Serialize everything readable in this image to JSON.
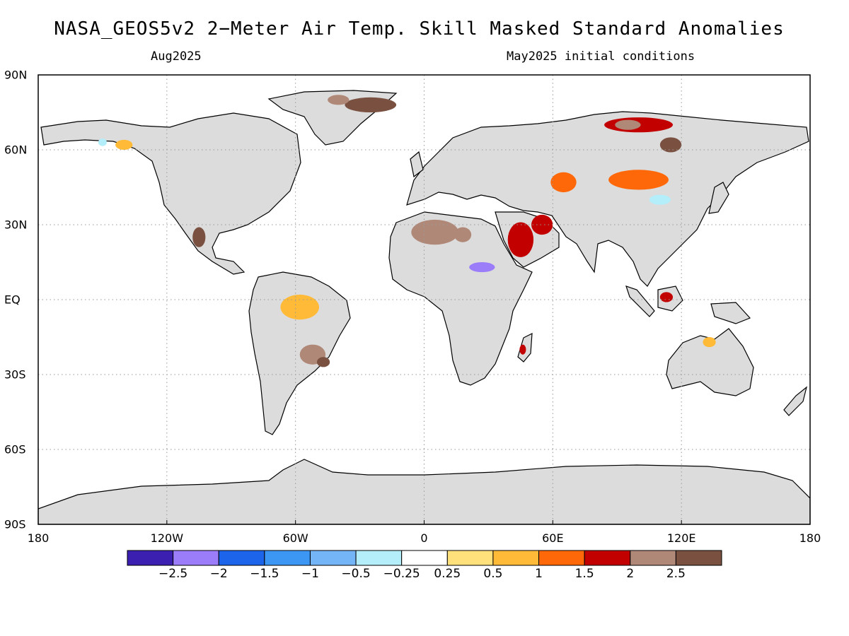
{
  "title": "NASA_GEOS5v2 2−Meter Air Temp. Skill Masked Standard Anomalies",
  "subtitle_left": "Aug2025",
  "subtitle_right": "May2025 initial conditions",
  "map": {
    "land_color": "#dcdcdc",
    "ocean_color": "#ffffff",
    "grid_color": "#999999",
    "lat_labels": [
      {
        "lat": 90,
        "text": "90N"
      },
      {
        "lat": 60,
        "text": "60N"
      },
      {
        "lat": 30,
        "text": "30N"
      },
      {
        "lat": 0,
        "text": "EQ"
      },
      {
        "lat": -30,
        "text": "30S"
      },
      {
        "lat": -60,
        "text": "60S"
      },
      {
        "lat": -90,
        "text": "90S"
      }
    ],
    "lon_labels": [
      {
        "lon": -180,
        "text": "180"
      },
      {
        "lon": -120,
        "text": "120W"
      },
      {
        "lon": -60,
        "text": "60W"
      },
      {
        "lon": 0,
        "text": "0"
      },
      {
        "lon": 60,
        "text": "60E"
      },
      {
        "lon": 120,
        "text": "120E"
      },
      {
        "lon": 180,
        "text": "180"
      }
    ],
    "anomaly_regions": [
      {
        "name": "saharan-warm",
        "lon": 5,
        "lat": 27,
        "rlon": 11,
        "rlat": 5,
        "level": 2
      },
      {
        "name": "saharan-warm-east",
        "lon": 18,
        "lat": 26,
        "rlon": 4,
        "rlat": 3,
        "level": 2
      },
      {
        "name": "arabia-warm",
        "lon": 45,
        "lat": 24,
        "rlon": 6,
        "rlat": 7,
        "level": 1.5
      },
      {
        "name": "iran-warm",
        "lon": 55,
        "lat": 30,
        "rlon": 5,
        "rlat": 4,
        "level": 1.5
      },
      {
        "name": "siberia-north-warm",
        "lon": 100,
        "lat": 70,
        "rlon": 16,
        "rlat": 3,
        "level": 1.5
      },
      {
        "name": "siberia-north-hot",
        "lon": 95,
        "lat": 70,
        "rlon": 6,
        "rlat": 2,
        "level": 2
      },
      {
        "name": "siberia-brown",
        "lon": 115,
        "lat": 62,
        "rlon": 5,
        "rlat": 3,
        "level": 2.5
      },
      {
        "name": "greenland-brown",
        "lon": -25,
        "lat": 78,
        "rlon": 12,
        "rlat": 3,
        "level": 2.5
      },
      {
        "name": "greenland-red",
        "lon": -40,
        "lat": 80,
        "rlon": 5,
        "rlat": 2,
        "level": 2
      },
      {
        "name": "mongolia-warm",
        "lon": 100,
        "lat": 48,
        "rlon": 14,
        "rlat": 4,
        "level": 1
      },
      {
        "name": "kazakh-warm",
        "lon": 65,
        "lat": 47,
        "rlon": 6,
        "rlat": 4,
        "level": 1
      },
      {
        "name": "amazon-warm",
        "lon": -58,
        "lat": -3,
        "rlon": 9,
        "rlat": 5,
        "level": 0.5
      },
      {
        "name": "brazil-south-red",
        "lon": -52,
        "lat": -22,
        "rlon": 6,
        "rlat": 4,
        "level": 2
      },
      {
        "name": "brazil-brown",
        "lon": -47,
        "lat": -25,
        "rlon": 3,
        "rlat": 2,
        "level": 2.5
      },
      {
        "name": "mexico-brown",
        "lon": -105,
        "lat": 25,
        "rlon": 3,
        "rlat": 4,
        "level": 2.5
      },
      {
        "name": "alaska-warm",
        "lon": -140,
        "lat": 62,
        "rlon": 4,
        "rlat": 2,
        "level": 0.5
      },
      {
        "name": "alaska-cool",
        "lon": -150,
        "lat": 63,
        "rlon": 2,
        "rlat": 1.5,
        "level": -0.5
      },
      {
        "name": "sahel-cold",
        "lon": 27,
        "lat": 13,
        "rlon": 6,
        "rlat": 2,
        "level": -2.5
      },
      {
        "name": "borneo-warm",
        "lon": 113,
        "lat": 1,
        "rlon": 3,
        "rlat": 2,
        "level": 1.5
      },
      {
        "name": "china-cool",
        "lon": 110,
        "lat": 40,
        "rlon": 5,
        "rlat": 2,
        "level": -0.5
      },
      {
        "name": "madagascar-warm",
        "lon": 46,
        "lat": -20,
        "rlon": 1.5,
        "rlat": 2,
        "level": 1.5
      },
      {
        "name": "australia-warm",
        "lon": 133,
        "lat": -17,
        "rlon": 3,
        "rlat": 2,
        "level": 0.5
      }
    ]
  },
  "colorbar": {
    "colors": [
      "#3a1fb0",
      "#9b7dfa",
      "#1c64ea",
      "#3c96f3",
      "#74b5f8",
      "#b3eefa",
      "#ffffff",
      "#ffe07a",
      "#ffba38",
      "#ff6808",
      "#c20000",
      "#b08878",
      "#7a5040"
    ],
    "labels": [
      "−2.5",
      "−2",
      "−1.5",
      "−1",
      "−0.5",
      "−0.25",
      "0.25",
      "0.5",
      "1",
      "1.5",
      "2",
      "2.5"
    ],
    "levels": [
      -2.5,
      -2,
      -1.5,
      -1,
      -0.5,
      -0.25,
      0.25,
      0.5,
      1,
      1.5,
      2,
      2.5
    ]
  }
}
